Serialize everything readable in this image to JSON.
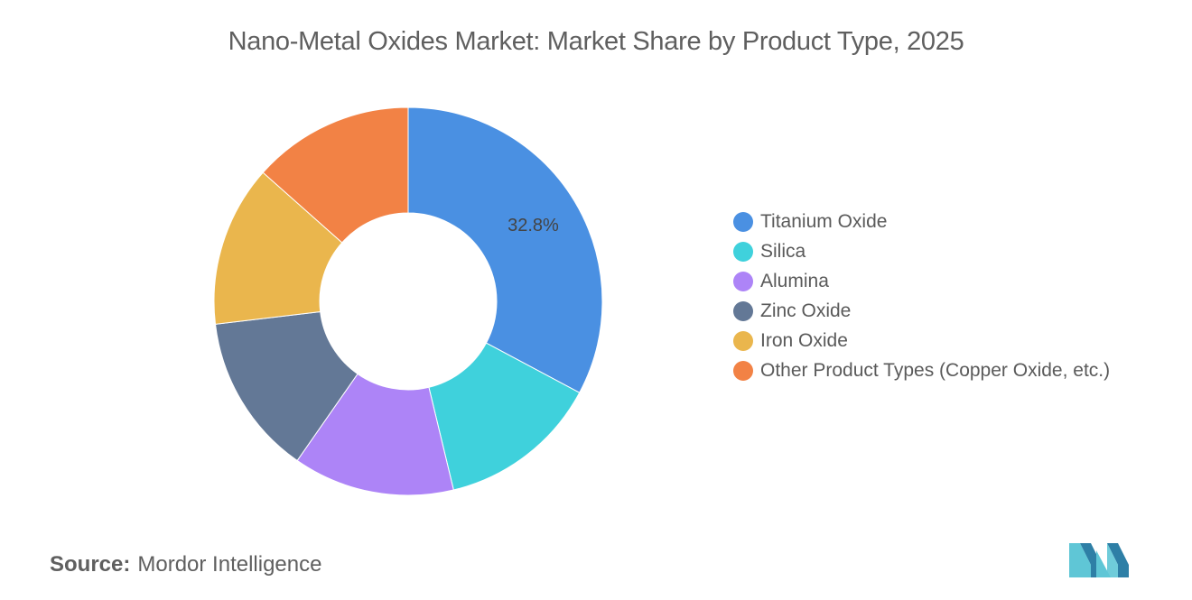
{
  "title": "Nano-Metal Oxides Market: Market Share by Product Type, 2025",
  "source": {
    "label": "Source:",
    "value": "Mordor Intelligence"
  },
  "logo": {
    "icon": "mordor-intelligence-logo-icon",
    "colors": [
      "#5fc6d6",
      "#2e7fa6"
    ]
  },
  "chart_data": {
    "type": "pie",
    "style": "donut",
    "categories": [
      "Titanium Oxide",
      "Silica",
      "Alumina",
      "Zinc Oxide",
      "Iron Oxide",
      "Other Product Types (Copper Oxide, etc.)"
    ],
    "values": [
      32.8,
      13.44,
      13.44,
      13.44,
      13.44,
      13.44
    ],
    "colors": [
      "#4a90e2",
      "#3fd1dc",
      "#ad84f7",
      "#637896",
      "#eab64d",
      "#f28245"
    ],
    "data_labels": [
      "32.8%",
      "",
      "",
      "",
      "",
      ""
    ],
    "legend_position": "right",
    "start_angle_deg": 90
  }
}
